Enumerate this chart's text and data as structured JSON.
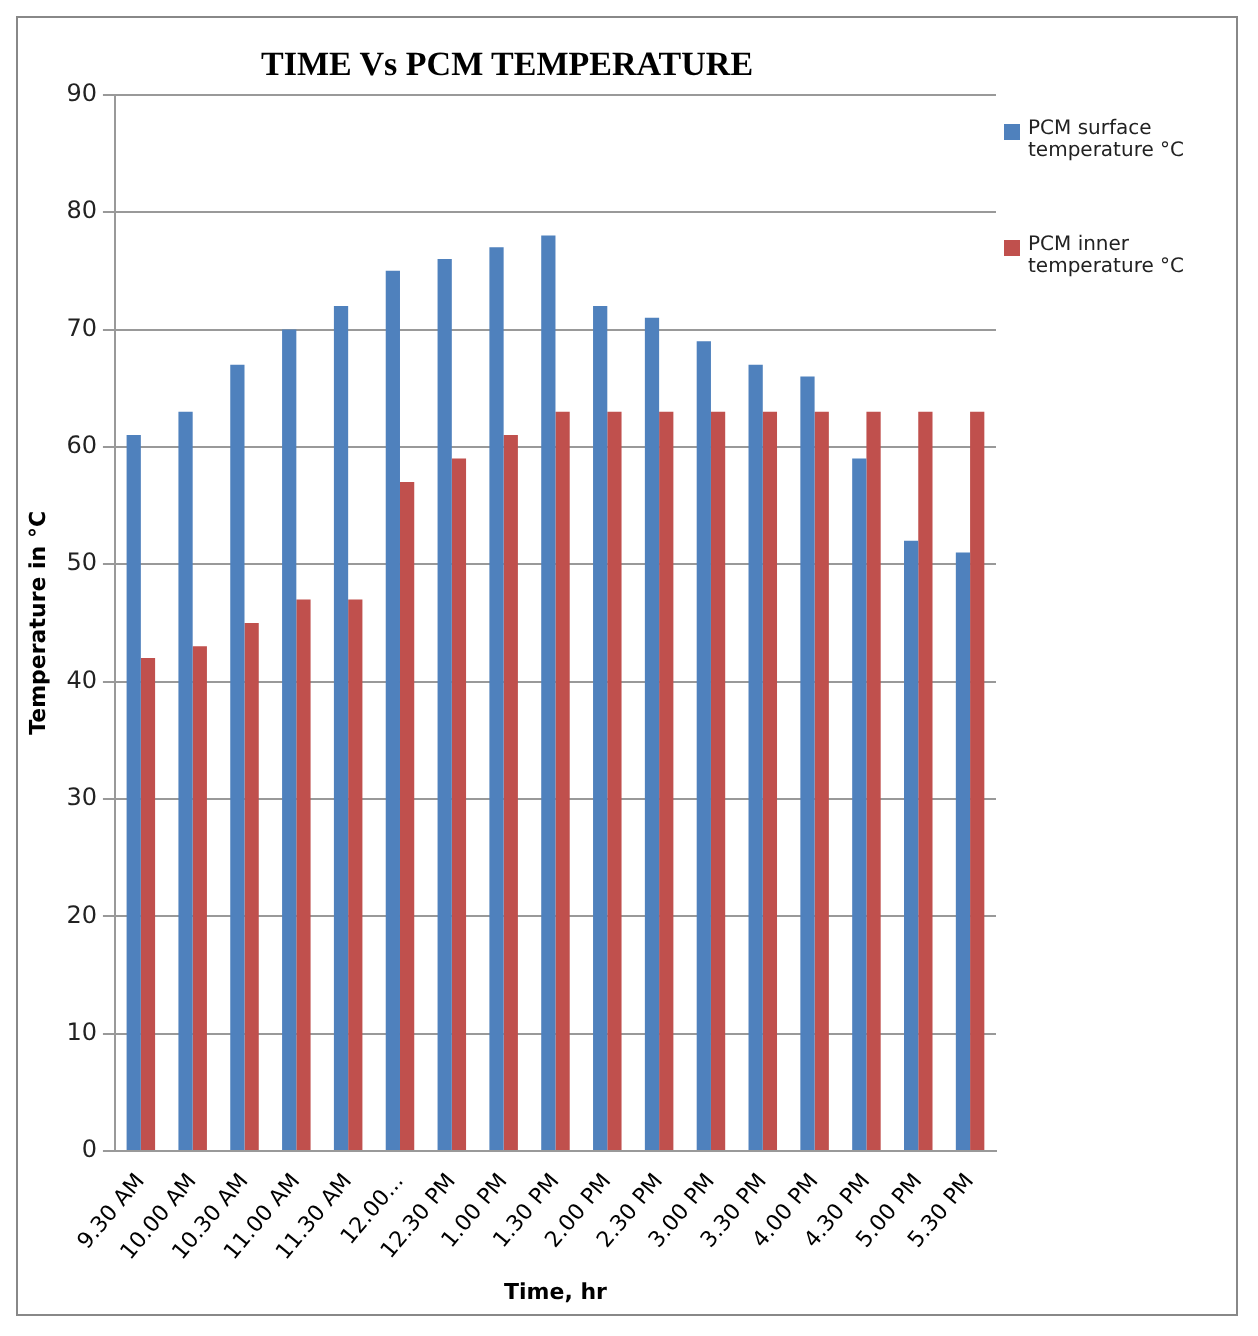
{
  "chart_data": {
    "type": "bar",
    "title": "TIME Vs PCM TEMPERATURE",
    "xlabel": "Time, hr",
    "ylabel": "Temperature in °C",
    "categories": [
      "9.30 AM",
      "10.00 AM",
      "10.30 AM",
      "11.00 AM",
      "11.30 AM",
      "12.00...",
      "12.30 PM",
      "1.00 PM",
      "1.30 PM",
      "2.00 PM",
      "2.30 PM",
      "3.00 PM",
      "3.30 PM",
      "4.00 PM",
      "4.30 PM",
      "5.00 PM",
      "5.30 PM"
    ],
    "series": [
      {
        "name": "PCM surface temperature °C",
        "color": "#4f81bd",
        "values": [
          61,
          63,
          67,
          70,
          72,
          75,
          76,
          77,
          78,
          72,
          71,
          69,
          67,
          66,
          59,
          52,
          51
        ]
      },
      {
        "name": "PCM inner temperature °C",
        "color": "#c0504d",
        "values": [
          42,
          43,
          45,
          47,
          47,
          57,
          59,
          61,
          63,
          63,
          63,
          63,
          63,
          63,
          63,
          63,
          63
        ]
      }
    ],
    "ylim": [
      0,
      90
    ],
    "yticks": [
      0,
      10,
      20,
      30,
      40,
      50,
      60,
      70,
      80,
      90
    ],
    "grid": "y",
    "legend": "top right"
  }
}
